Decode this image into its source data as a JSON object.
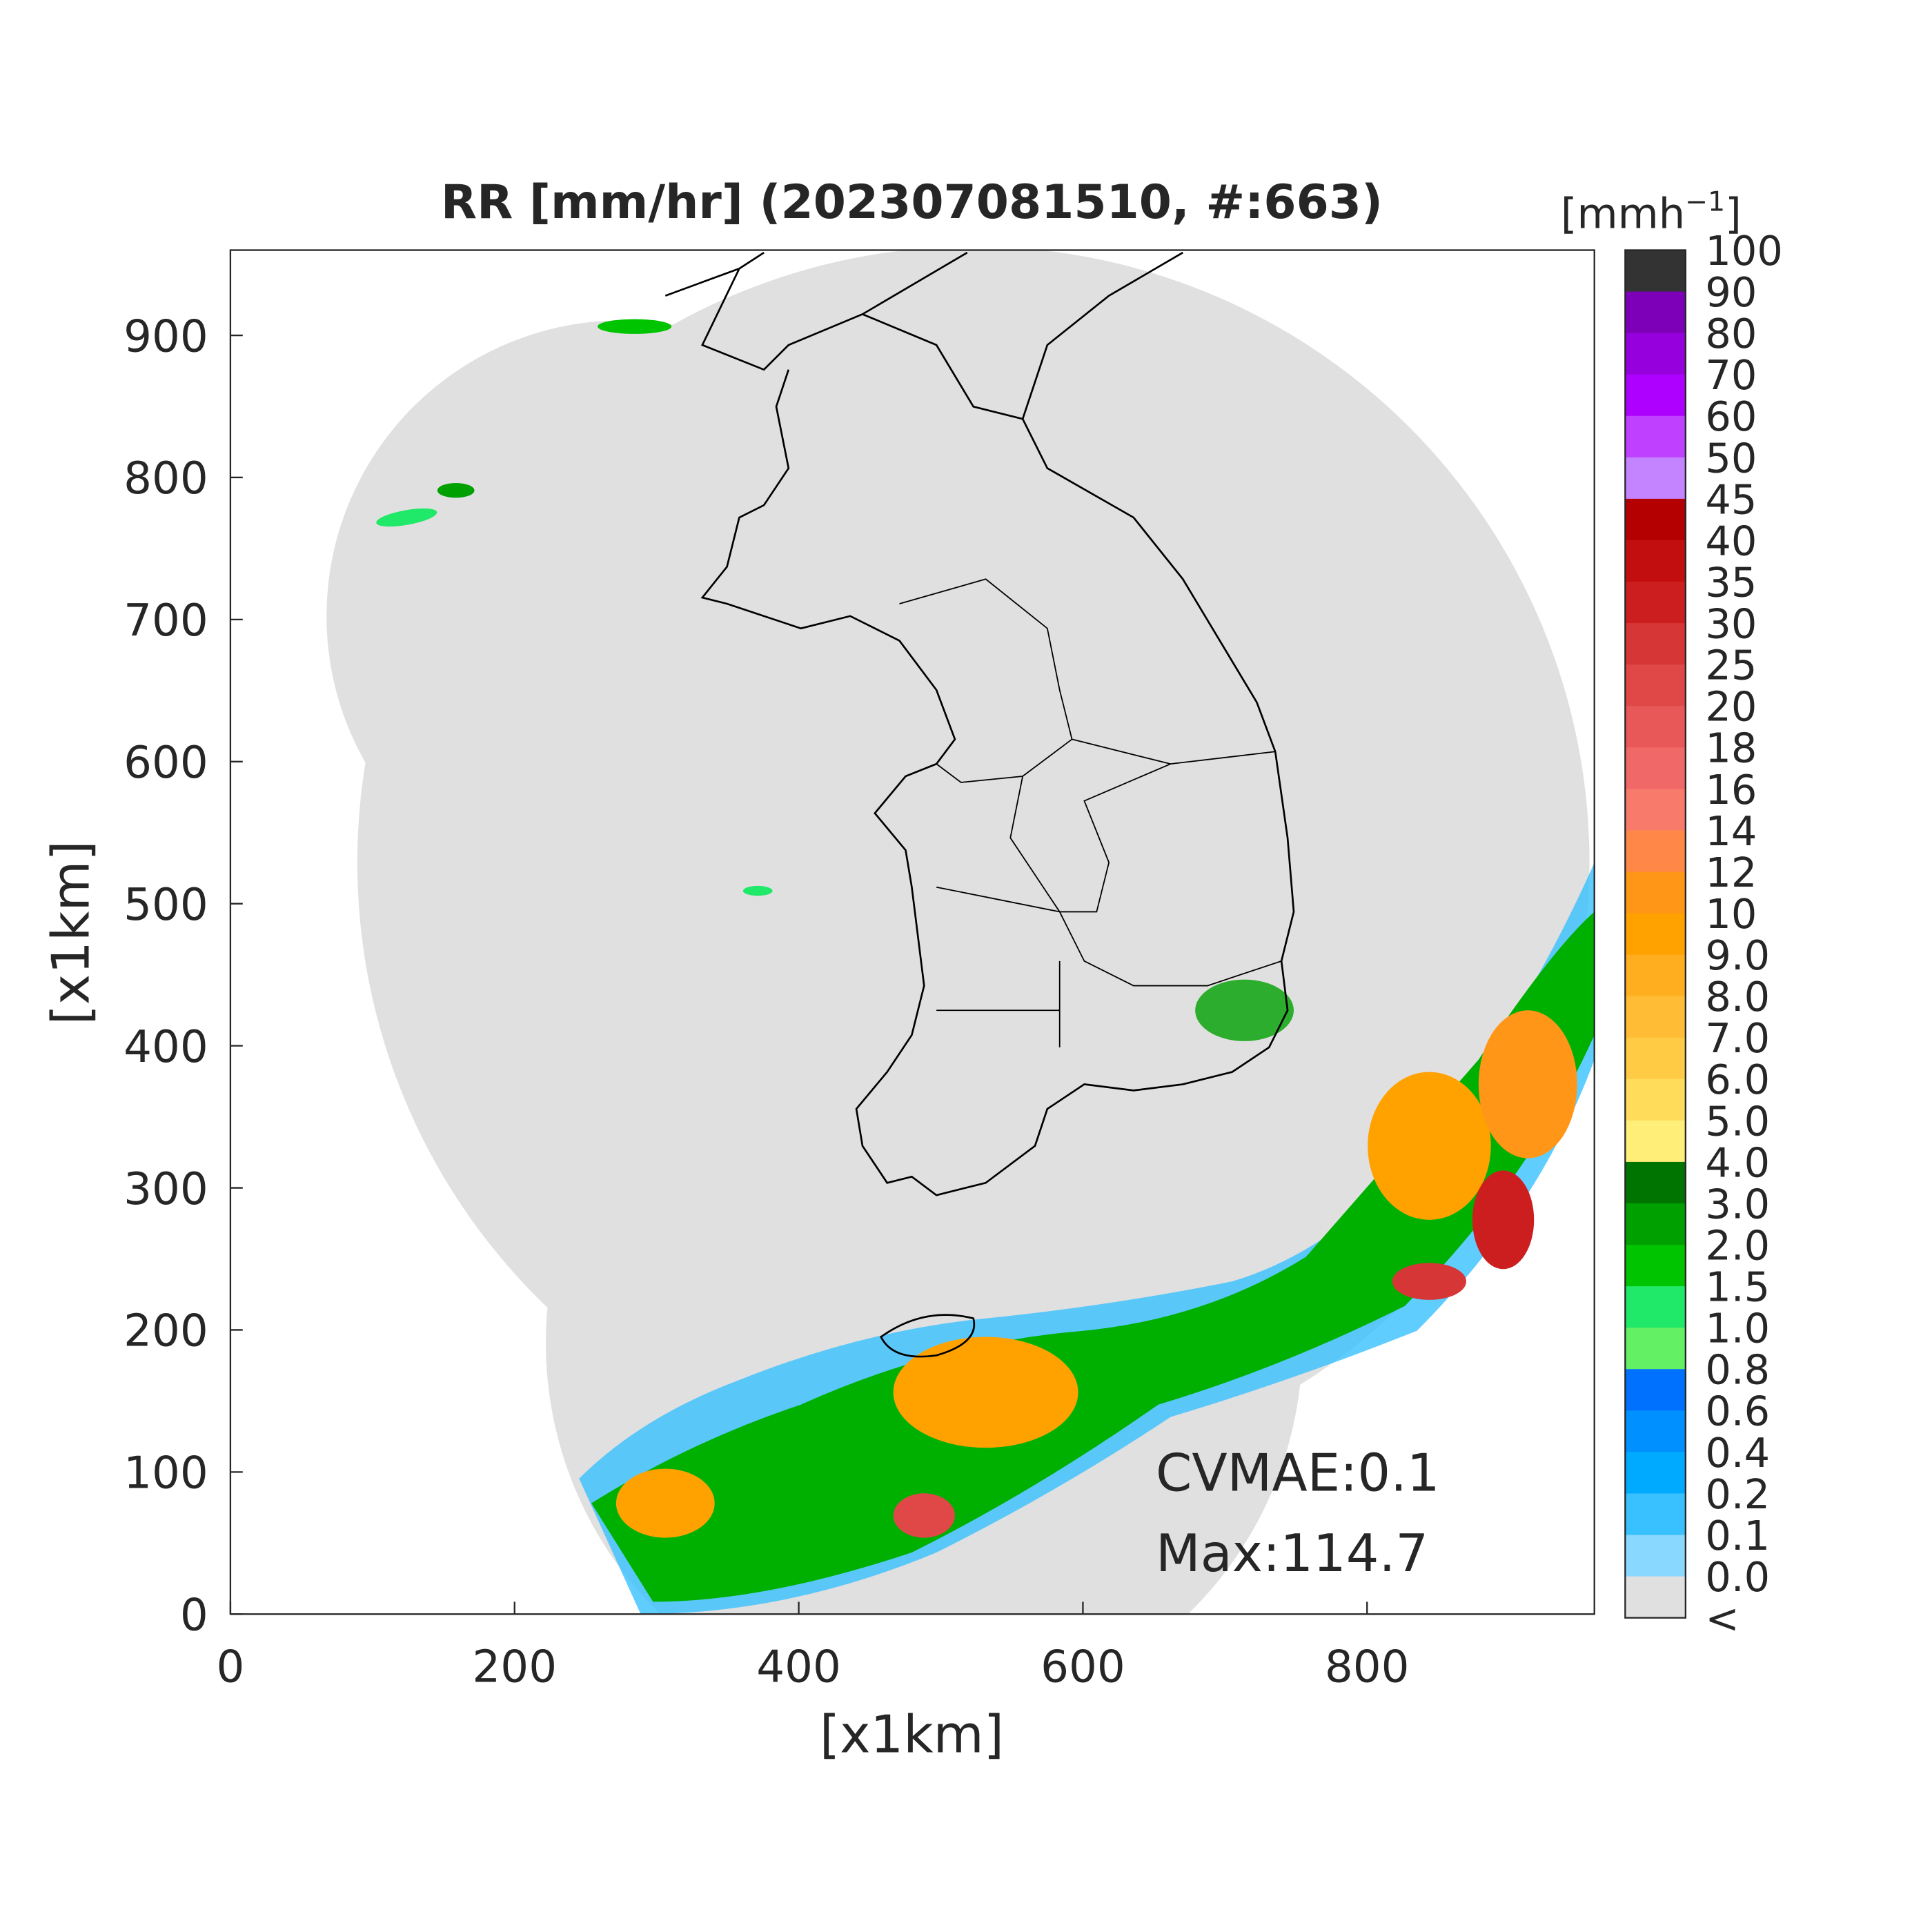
{
  "title": "RR [mm/hr] (202307081510, #:663)",
  "x_axis": {
    "label": "[x1km]",
    "lim": [
      0,
      960
    ],
    "ticks": [
      0,
      200,
      400,
      600,
      800
    ]
  },
  "y_axis": {
    "label": "[x1km]",
    "lim": [
      0,
      960
    ],
    "ticks": [
      0,
      100,
      200,
      300,
      400,
      500,
      600,
      700,
      800,
      900
    ]
  },
  "colorbar": {
    "unit": {
      "base": "[mmh",
      "sup": "−1",
      "close": "]"
    },
    "labels": [
      "100",
      "90",
      "80",
      "70",
      "60",
      "50",
      "45",
      "40",
      "35",
      "30",
      "25",
      "20",
      "18",
      "16",
      "14",
      "12",
      "10",
      "9.0",
      "8.0",
      "7.0",
      "6.0",
      "5.0",
      "4.0",
      "3.0",
      "2.0",
      "1.5",
      "1.0",
      "0.8",
      "0.6",
      "0.4",
      "0.2",
      "0.1",
      "0.0",
      "<"
    ],
    "colors": [
      "#333333",
      "#7d00b8",
      "#9500dc",
      "#ad00ff",
      "#c040ff",
      "#c484ff",
      "#b40000",
      "#c20e0e",
      "#cc1e1e",
      "#d63636",
      "#e04848",
      "#e85858",
      "#f06868",
      "#f87a6a",
      "#ff8848",
      "#ff9618",
      "#ffa200",
      "#ffae20",
      "#ffbc34",
      "#ffcb44",
      "#ffdc5a",
      "#ffee78",
      "#007400",
      "#00a000",
      "#00c400",
      "#20e868",
      "#64f064",
      "#0070ff",
      "#0090ff",
      "#00aaff",
      "#38c0ff",
      "#88d8ff",
      "#e0e0e0",
      "#ffffff"
    ]
  },
  "annotations": [
    "CVMAE:0.1",
    "Max:114.7"
  ]
}
